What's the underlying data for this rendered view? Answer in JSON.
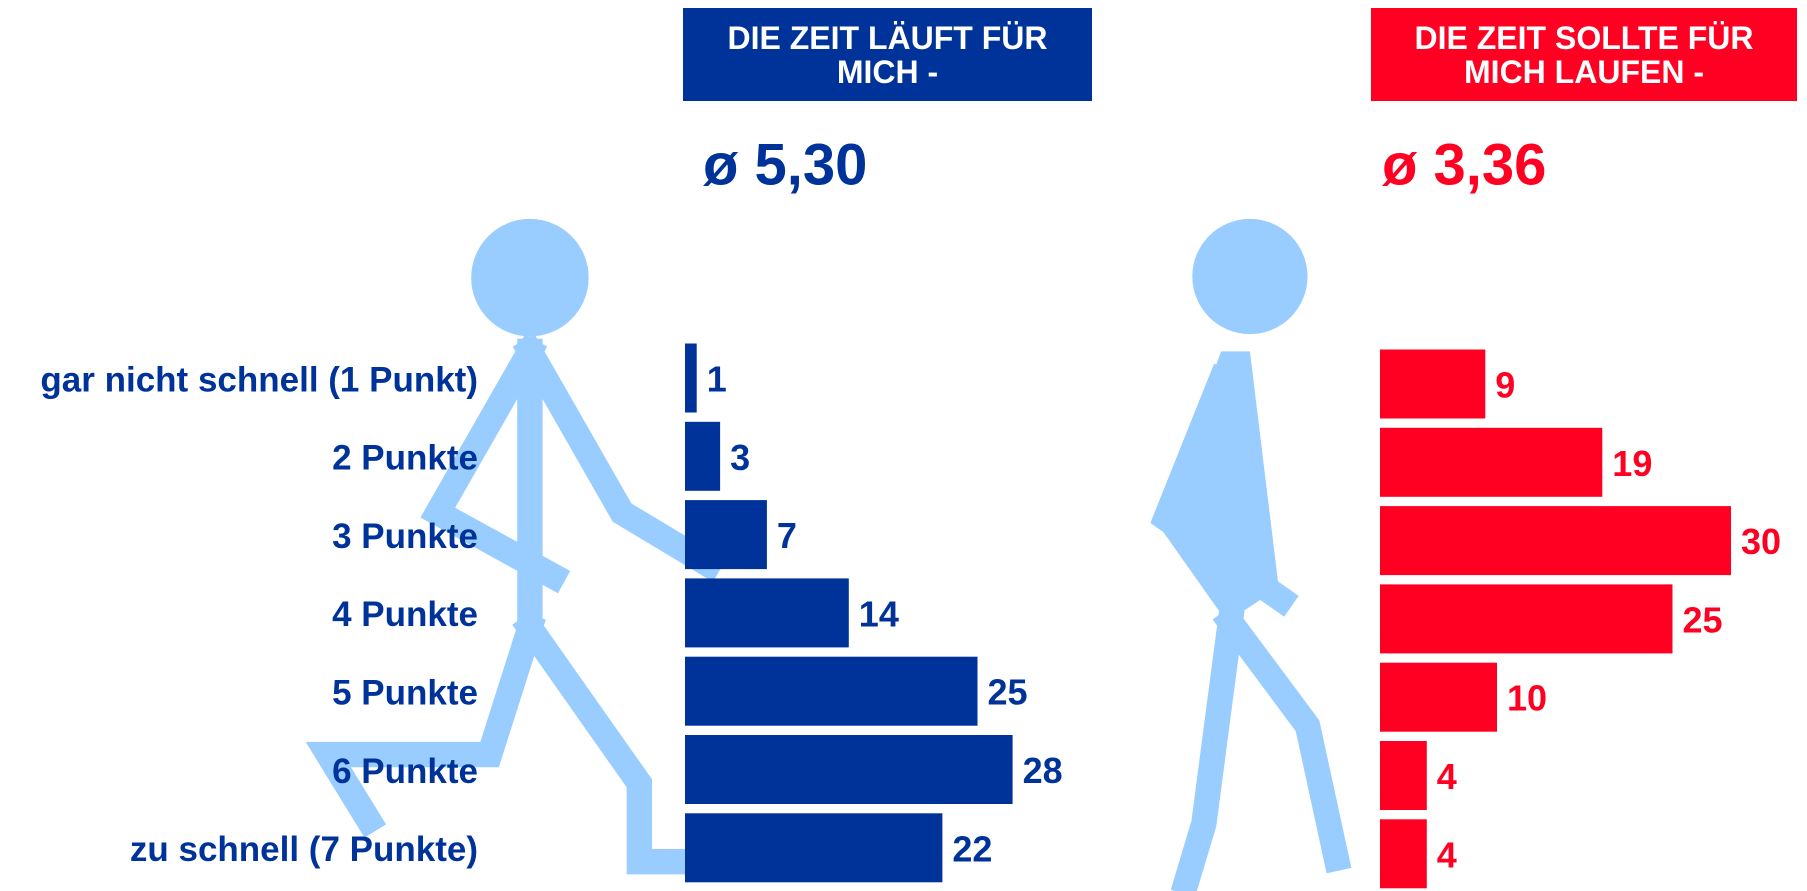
{
  "chart_data": [
    {
      "type": "bar",
      "title": "DIE ZEIT LÄUFT FÜR MICH -",
      "subtitle": "ø 5,30",
      "color": "#003399",
      "categories": [
        "gar nicht schnell (1 Punkt)",
        "2 Punkte",
        "3 Punkte",
        "4 Punkte",
        "5 Punkte",
        "6 Punkte",
        "zu schnell (7 Punkte)"
      ],
      "values": [
        1,
        3,
        7,
        14,
        25,
        28,
        22
      ]
    },
    {
      "type": "bar",
      "title": "DIE ZEIT SOLLTE FÜR MICH LAUFEN -",
      "subtitle": "ø 3,36",
      "color": "#ff0022",
      "values": [
        9,
        19,
        30,
        25,
        10,
        4,
        4
      ]
    }
  ]
}
